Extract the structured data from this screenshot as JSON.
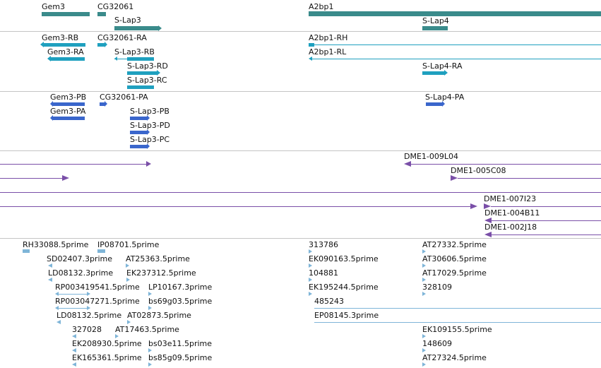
{
  "colors": {
    "gene": "#3a8b8b",
    "transcript": "#1fa0bf",
    "protein": "#3a66cc",
    "clone": "#7a4fa8",
    "est": "#7fb5d8",
    "separator": "#c4c4c4"
  },
  "tracks": {
    "genes": {
      "labels": [
        "Gem3",
        "CG32061",
        "S-Lap3",
        "A2bp1",
        "S-Lap4"
      ]
    },
    "transcripts": {
      "labels": [
        "Gem3-RB",
        "CG32061-RA",
        "Gem3-RA",
        "S-Lap3-RB",
        "S-Lap3-RD",
        "S-Lap3-RC",
        "A2bp1-RH",
        "A2bp1-RL",
        "S-Lap4-RA"
      ]
    },
    "proteins": {
      "labels": [
        "Gem3-PB",
        "CG32061-PA",
        "Gem3-PA",
        "S-Lap3-PB",
        "S-Lap3-PD",
        "S-Lap3-PC",
        "S-Lap4-PA"
      ]
    },
    "clones": {
      "labels": [
        "DME1-009L04",
        "DME1-005C08",
        "DME1-007I23",
        "DME1-004B11",
        "DME1-002J18"
      ]
    },
    "ests": {
      "labels": [
        "RH33088.5prime",
        "IP08701.5prime",
        "313786",
        "AT27332.5prime",
        "SD02407.3prime",
        "AT25363.5prime",
        "EK090163.5prime",
        "AT30606.5prime",
        "LD08132.3prime",
        "EK237312.5prime",
        "104881",
        "AT17029.5prime",
        "RP003419541.5prime",
        "LP10167.3prime",
        "EK195244.5prime",
        "328109",
        "RP003047271.5prime",
        "bs69g03.5prime",
        "485243",
        "LD08132.5prime",
        "AT02873.5prime",
        "EP08145.3prime",
        "327028",
        "AT17463.5prime",
        "EK109155.5prime",
        "EK208930.5prime",
        "bs03e11.5prime",
        "148609",
        "EK165361.5prime",
        "bs85g09.5prime",
        "AT27324.5prime"
      ]
    }
  }
}
